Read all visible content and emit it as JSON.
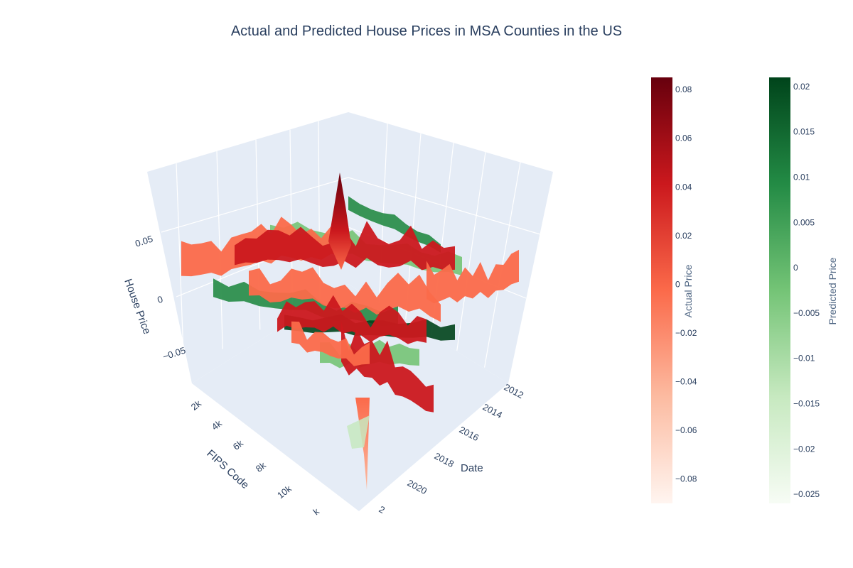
{
  "chart_data": {
    "type": "surface",
    "title": "Actual and Predicted House Prices in MSA Counties in the US",
    "axes": {
      "x": {
        "title": "Date",
        "ticks": [
          "2012",
          "2014",
          "2016",
          "2018",
          "2020",
          "2"
        ]
      },
      "y": {
        "title": "FIPS Code",
        "ticks": [
          "2k",
          "4k",
          "6k",
          "8k",
          "10k",
          "k"
        ]
      },
      "z": {
        "title": "House Price",
        "ticks": [
          "0.05",
          "0",
          "−0.05"
        ]
      }
    },
    "series": [
      {
        "name": "Actual Price",
        "colorscale": "Reds",
        "colors": [
          "#fff5f0",
          "#fcbba1",
          "#fb6a4a",
          "#cb181d",
          "#67000d"
        ],
        "colorbar": {
          "title": "Actual Price",
          "ticks": [
            "0.08",
            "0.06",
            "0.04",
            "0.02",
            "0",
            "−0.02",
            "−0.04",
            "−0.06",
            "−0.08"
          ],
          "range": [
            -0.09,
            0.085
          ]
        }
      },
      {
        "name": "Predicted Price",
        "colorscale": "Greens",
        "colors": [
          "#f7fcf5",
          "#c7e9c0",
          "#74c476",
          "#238b45",
          "#00441b"
        ],
        "colorbar": {
          "title": "Predicted Price",
          "ticks": [
            "0.02",
            "0.015",
            "0.01",
            "0.005",
            "0",
            "−0.005",
            "−0.01",
            "−0.015",
            "−0.02",
            "−0.025"
          ],
          "range": [
            -0.026,
            0.021
          ]
        }
      }
    ]
  }
}
